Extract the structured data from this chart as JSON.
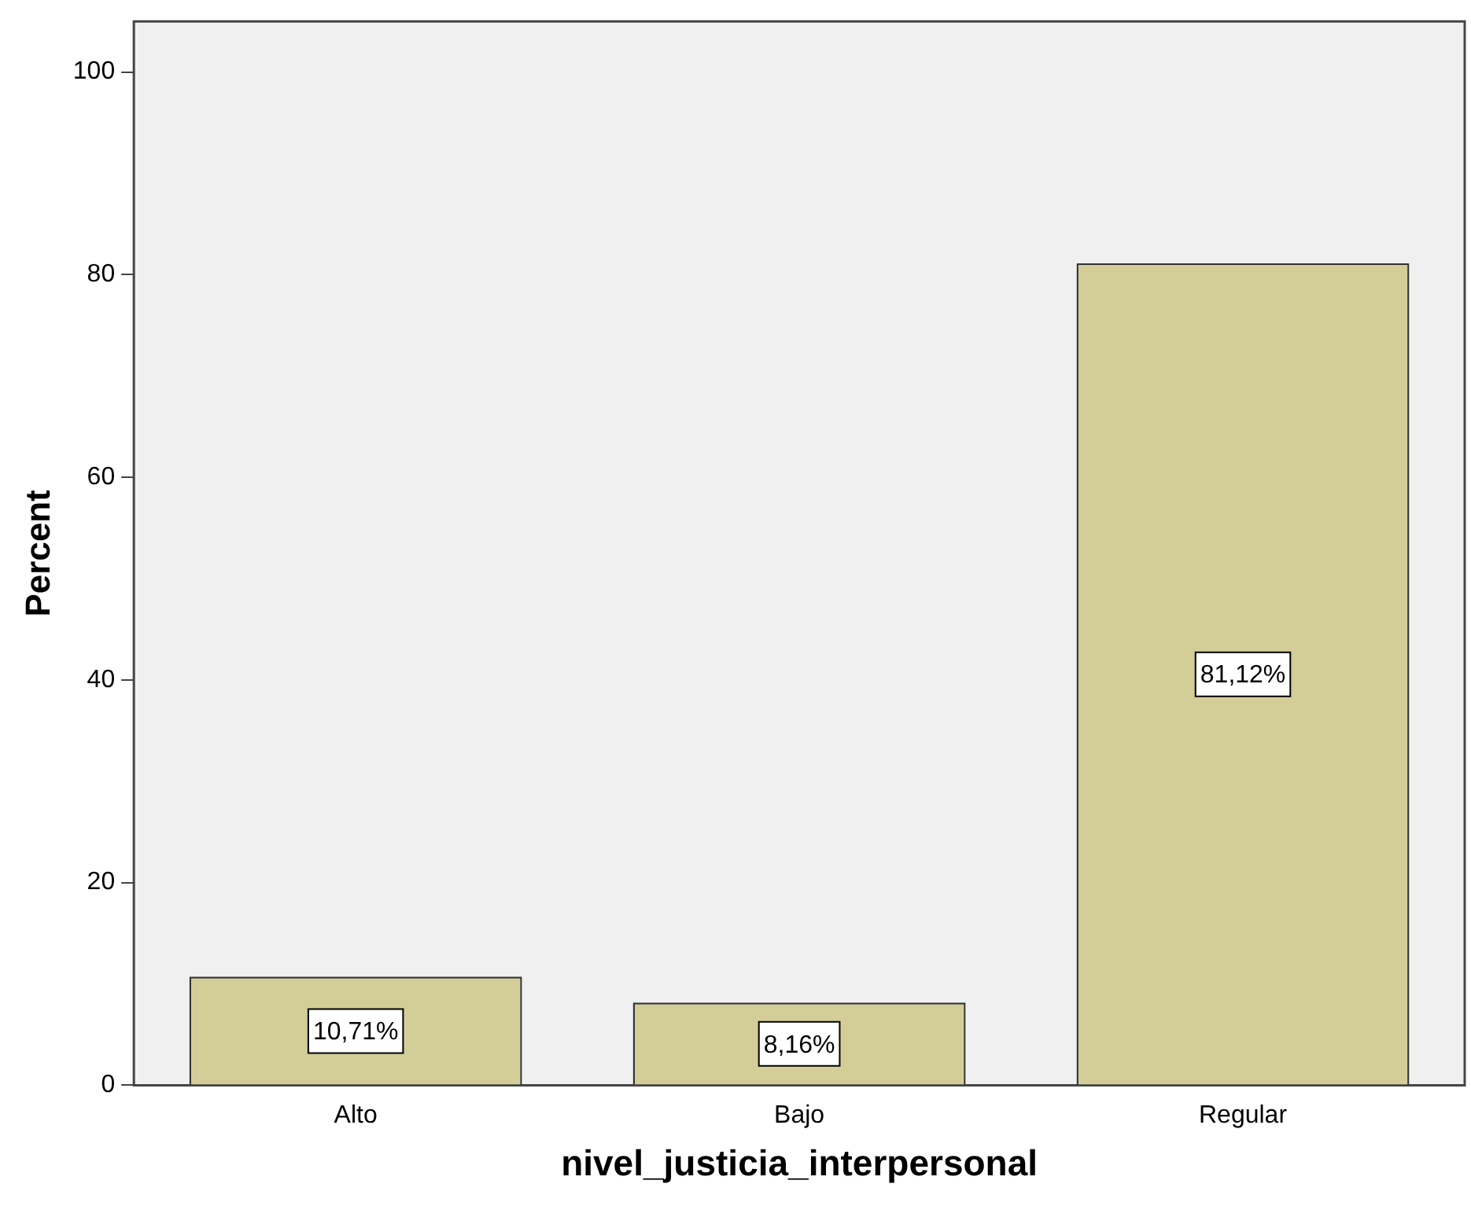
{
  "chart_data": {
    "type": "bar",
    "xlabel": "nivel_justicia_interpersonal",
    "ylabel": "Percent",
    "categories": [
      "Alto",
      "Bajo",
      "Regular"
    ],
    "values": [
      10.71,
      8.16,
      81.12
    ],
    "value_labels": [
      "10,71%",
      "8,16%",
      "81,12%"
    ],
    "color": "#d3ce98",
    "ylim": [
      0,
      105
    ],
    "yticks": [
      0,
      20,
      40,
      60,
      80,
      100
    ],
    "grid": false,
    "legend": false
  }
}
